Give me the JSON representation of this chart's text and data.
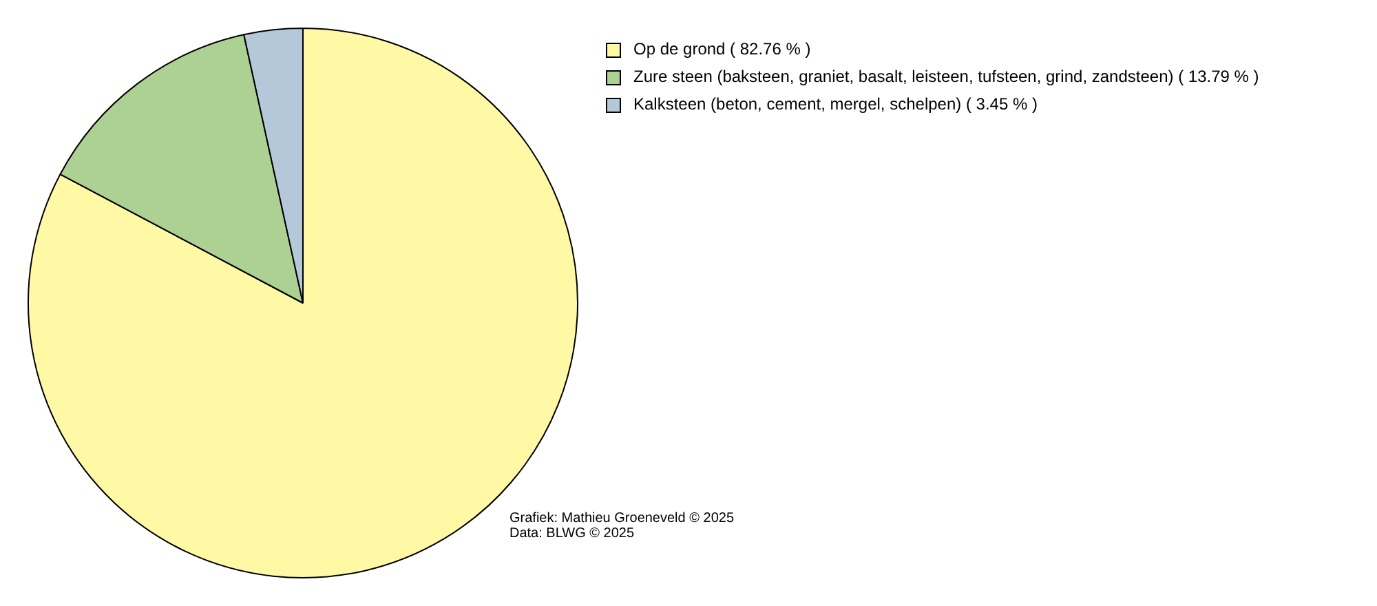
{
  "chart_data": {
    "type": "pie",
    "categories": [
      "Op de grond ( 82.76 % )",
      "Zure steen (baksteen, graniet, basalt, leisteen, tufsteen, grind, zandsteen) ( 13.79 % )",
      "Kalksteen (beton, cement, mergel, schelpen) ( 3.45 % )"
    ],
    "values": [
      82.76,
      13.79,
      3.45
    ],
    "colors": [
      "#fff8a5",
      "#acd192",
      "#b5c8da"
    ],
    "legend": "top right",
    "annotations": [
      "Grafiek: Mathieu Groeneveld © 2025",
      "Data: BLWG © 2025"
    ]
  }
}
